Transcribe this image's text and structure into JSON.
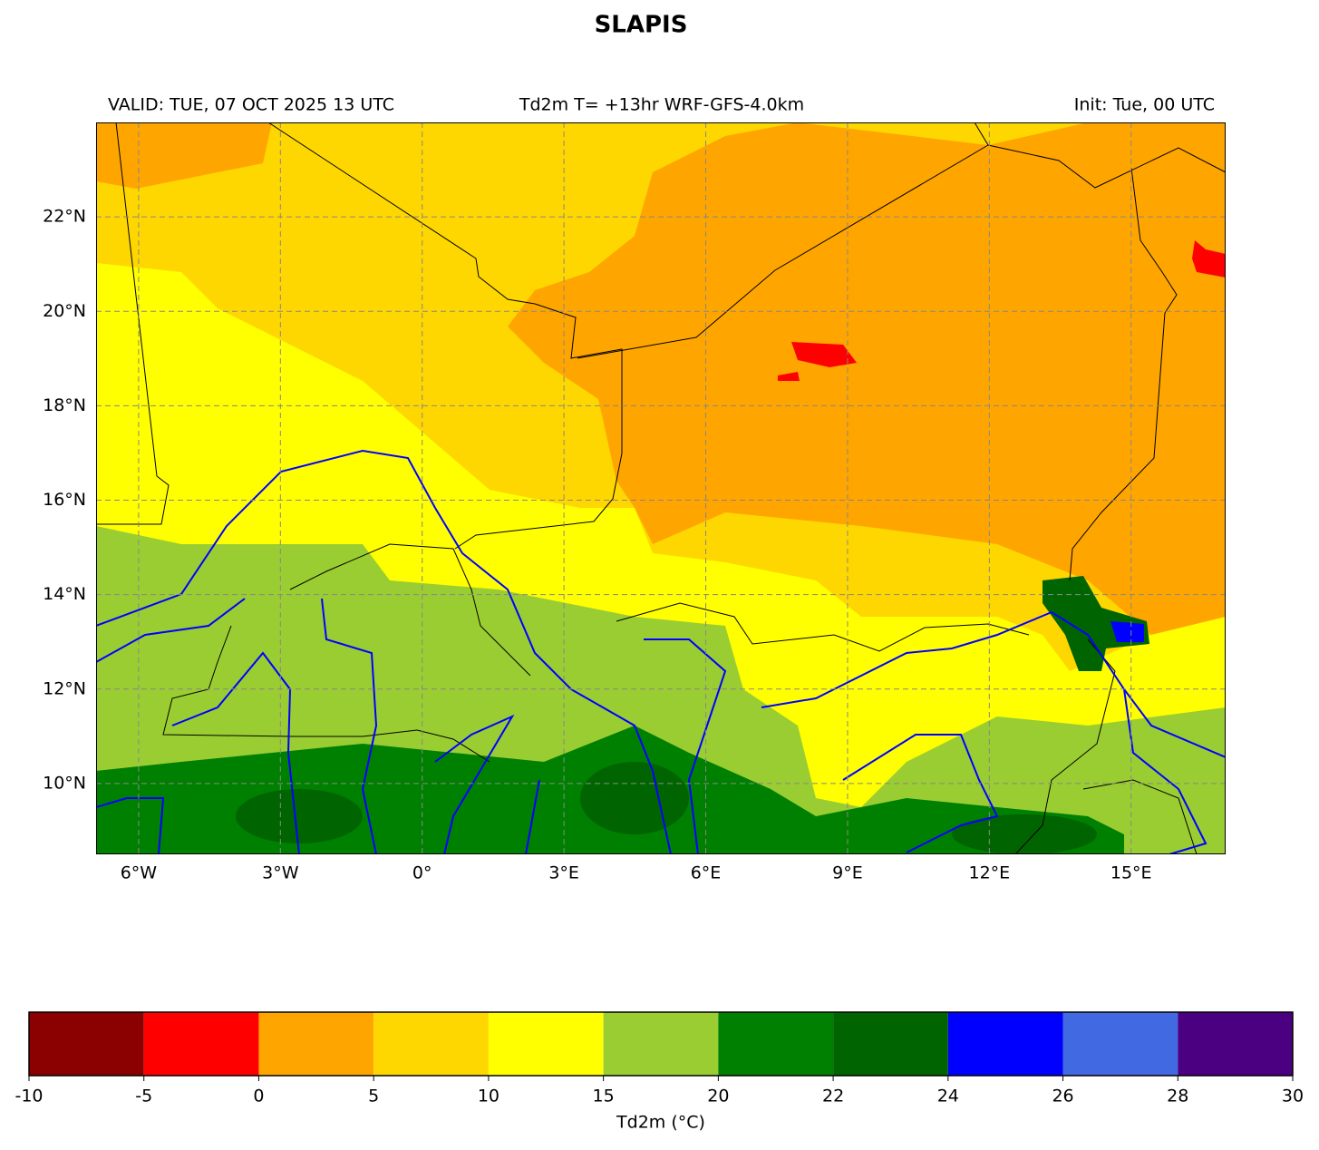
{
  "header": {
    "title": "SLAPIS",
    "valid": "VALID: TUE, 07 OCT 2025 13 UTC",
    "center": "Td2m T= +13hr WRF-GFS-4.0km",
    "init": "Init: Tue, 00 UTC"
  },
  "map": {
    "xlim": [
      -6.9,
      17
    ],
    "ylim": [
      8.5,
      24
    ],
    "lon_ticks": [
      {
        "value": -6,
        "label": "6°W"
      },
      {
        "value": -3,
        "label": "3°W"
      },
      {
        "value": 0,
        "label": "0°"
      },
      {
        "value": 3,
        "label": "3°E"
      },
      {
        "value": 6,
        "label": "6°E"
      },
      {
        "value": 9,
        "label": "9°E"
      },
      {
        "value": 12,
        "label": "12°E"
      },
      {
        "value": 15,
        "label": "15°E"
      }
    ],
    "lat_ticks": [
      {
        "value": 10,
        "label": "10°N"
      },
      {
        "value": 12,
        "label": "12°N"
      },
      {
        "value": 14,
        "label": "14°N"
      },
      {
        "value": 16,
        "label": "16°N"
      },
      {
        "value": 18,
        "label": "18°N"
      },
      {
        "value": 20,
        "label": "20°N"
      },
      {
        "value": 22,
        "label": "22°N"
      }
    ]
  },
  "colorbar": {
    "label": "Td2m (°C)",
    "ticks": [
      -10,
      -5,
      0,
      5,
      10,
      15,
      20,
      22,
      24,
      26,
      28,
      30
    ],
    "colors": [
      "#8b0000",
      "#ff0000",
      "#ffa500",
      "#ffd700",
      "#ffff00",
      "#9acd32",
      "#008000",
      "#006400",
      "#0000ff",
      "#4169e1",
      "#4b0082"
    ]
  }
}
